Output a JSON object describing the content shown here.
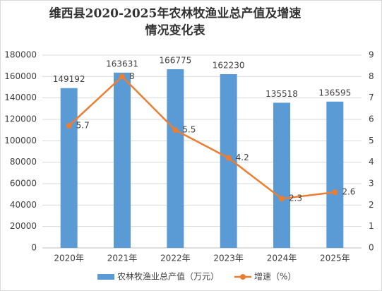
{
  "chart_data": {
    "type": "bar",
    "title": [
      "维西县2020-2025年农林牧渔业总产值及增速",
      "情况变化表"
    ],
    "categories": [
      "2020年",
      "2021年",
      "2022年",
      "2023年",
      "2024年",
      "2025年"
    ],
    "series": [
      {
        "name": "农林牧渔业总产值（万元）",
        "color": "#5b9bd5",
        "type": "bar",
        "values": [
          149192,
          163631,
          166775,
          162230,
          135518,
          136595
        ]
      },
      {
        "name": "增速（%）",
        "color": "#ed7d31",
        "type": "line",
        "axis": "y2",
        "values": [
          5.7,
          8,
          5.5,
          4.2,
          2.3,
          2.6
        ]
      }
    ],
    "ylim": [
      0,
      180000
    ],
    "yticks": [
      0,
      20000,
      40000,
      60000,
      80000,
      100000,
      120000,
      140000,
      160000,
      180000
    ],
    "y2lim": [
      0,
      9
    ],
    "y2ticks": [
      0,
      1,
      2,
      3,
      4,
      5,
      6,
      7,
      8,
      9
    ],
    "grid": true,
    "legend": "bottom"
  }
}
